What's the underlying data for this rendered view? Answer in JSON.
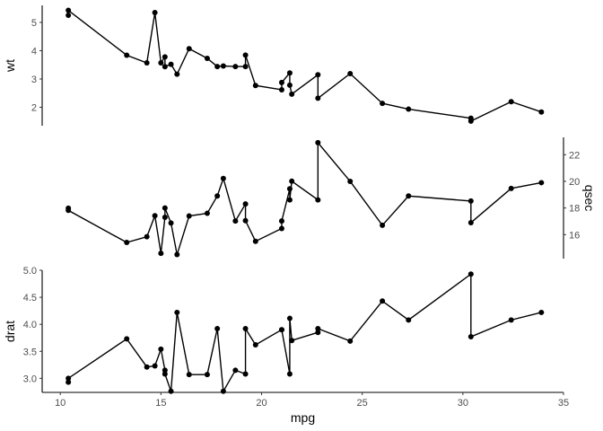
{
  "chart_data": [
    {
      "type": "line",
      "xlabel": "mpg",
      "ylabel": "wt",
      "y_axis_side": "left",
      "x_axis_shown": false,
      "ylim": [
        1.35,
        5.6
      ],
      "yticks": [
        2,
        3,
        4,
        5
      ],
      "x": [
        10.4,
        10.4,
        13.3,
        14.3,
        14.7,
        15.0,
        15.2,
        15.2,
        15.5,
        15.8,
        16.4,
        17.3,
        17.8,
        18.1,
        18.7,
        19.2,
        19.2,
        19.7,
        21.0,
        21.0,
        21.4,
        21.4,
        21.5,
        22.8,
        22.8,
        24.4,
        26.0,
        27.3,
        30.4,
        30.4,
        32.4,
        33.9
      ],
      "y": [
        5.25,
        5.424,
        3.84,
        3.57,
        5.345,
        3.57,
        3.78,
        3.435,
        3.52,
        3.17,
        4.07,
        3.73,
        3.44,
        3.46,
        3.44,
        3.44,
        3.845,
        2.77,
        2.62,
        2.875,
        3.215,
        2.78,
        2.465,
        3.15,
        2.32,
        3.19,
        2.14,
        1.935,
        1.615,
        1.513,
        2.2,
        1.835
      ]
    },
    {
      "type": "line",
      "xlabel": "mpg",
      "ylabel": "qsec",
      "y_axis_side": "right",
      "x_axis_shown": false,
      "ylim": [
        14.2,
        23.3
      ],
      "yticks": [
        16,
        18,
        20,
        22
      ],
      "x": [
        10.4,
        10.4,
        13.3,
        14.3,
        14.7,
        15.0,
        15.2,
        15.2,
        15.5,
        15.8,
        16.4,
        17.3,
        17.8,
        18.1,
        18.7,
        19.2,
        19.2,
        19.7,
        21.0,
        21.0,
        21.4,
        21.4,
        21.5,
        22.8,
        22.8,
        24.4,
        26.0,
        27.3,
        30.4,
        30.4,
        32.4,
        33.9
      ],
      "y": [
        17.98,
        17.82,
        15.41,
        15.84,
        17.42,
        14.6,
        17.3,
        18.0,
        16.87,
        14.5,
        17.4,
        17.6,
        18.9,
        20.22,
        17.02,
        18.3,
        17.05,
        15.5,
        16.46,
        17.02,
        19.44,
        18.61,
        20.01,
        18.61,
        22.9,
        20.0,
        16.7,
        18.9,
        18.52,
        16.9,
        19.47,
        19.9
      ]
    },
    {
      "type": "line",
      "xlabel": "mpg",
      "ylabel": "drat",
      "y_axis_side": "left",
      "x_axis_shown": true,
      "xlim": [
        9.1,
        35.0
      ],
      "xticks": [
        10,
        15,
        20,
        25,
        30,
        35
      ],
      "ylim": [
        2.74,
        5.0
      ],
      "yticks": [
        3.0,
        3.5,
        4.0,
        4.5,
        5.0
      ],
      "x": [
        10.4,
        10.4,
        13.3,
        14.3,
        14.7,
        15.0,
        15.2,
        15.2,
        15.5,
        15.8,
        16.4,
        17.3,
        17.8,
        18.1,
        18.7,
        19.2,
        19.2,
        19.7,
        21.0,
        21.0,
        21.4,
        21.4,
        21.5,
        22.8,
        22.8,
        24.4,
        26.0,
        27.3,
        30.4,
        30.4,
        32.4,
        33.9
      ],
      "y": [
        2.93,
        3.0,
        3.73,
        3.21,
        3.23,
        3.54,
        3.15,
        3.08,
        2.76,
        4.22,
        3.07,
        3.07,
        3.92,
        2.76,
        3.15,
        3.08,
        3.92,
        3.62,
        3.9,
        3.9,
        3.08,
        4.11,
        3.7,
        3.85,
        3.92,
        3.69,
        4.43,
        4.08,
        4.93,
        3.77,
        4.08,
        4.22
      ]
    }
  ]
}
